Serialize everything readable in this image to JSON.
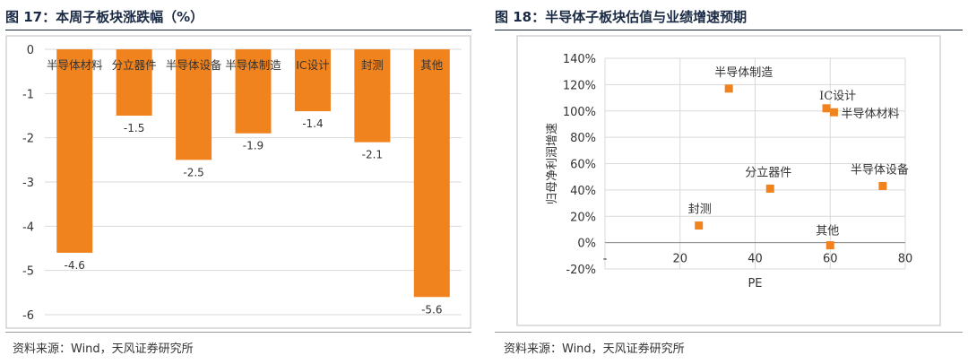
{
  "left_figure": {
    "title": "图 17：本周子板块涨跌幅（%）",
    "source": "资料来源：Wind，天风证券研究所"
  },
  "right_figure": {
    "title": "图 18：半导体子板块估值与业绩增速预期",
    "source": "资料来源：Wind，天风证券研究所"
  },
  "colors": {
    "accent": "#f0831e",
    "navy": "#1a2a44",
    "grid": "#d9d9d9",
    "axis": "#888888"
  },
  "chart_data": [
    {
      "type": "bar",
      "categories": [
        "半导体材料",
        "分立器件",
        "半导体设备",
        "半导体制造",
        "IC设计",
        "封测",
        "其他"
      ],
      "values": [
        -4.6,
        -1.5,
        -2.5,
        -1.9,
        -1.4,
        -2.1,
        -5.6
      ],
      "data_labels": [
        "-4.6",
        "-1.5",
        "-2.5",
        "-1.9",
        "-1.4",
        "-2.1",
        "-5.6"
      ],
      "ylim": [
        -6,
        0
      ],
      "yticks": [
        "0",
        "-1",
        "-2",
        "-3",
        "-4",
        "-5",
        "-6"
      ],
      "grid": true,
      "color": "#f0831e"
    },
    {
      "type": "scatter",
      "points": [
        {
          "label": "半导体制造",
          "x": 33,
          "y": 1.17
        },
        {
          "label": "IC设计",
          "x": 59,
          "y": 1.02
        },
        {
          "label": "半导体材料",
          "x": 61,
          "y": 0.99
        },
        {
          "label": "分立器件",
          "x": 44,
          "y": 0.41
        },
        {
          "label": "半导体设备",
          "x": 74,
          "y": 0.43
        },
        {
          "label": "封测",
          "x": 25,
          "y": 0.13
        },
        {
          "label": "其他",
          "x": 60,
          "y": -0.02
        }
      ],
      "xlabel": "PE",
      "ylabel": "归母净利润增速",
      "xlim": [
        0,
        80
      ],
      "ylim": [
        -0.2,
        1.4
      ],
      "xticks": [
        "-",
        "20",
        "40",
        "60",
        "80"
      ],
      "yticks": [
        "140%",
        "120%",
        "100%",
        "80%",
        "60%",
        "40%",
        "20%",
        "0%",
        "-20%"
      ],
      "grid": true,
      "color": "#f0831e"
    }
  ]
}
